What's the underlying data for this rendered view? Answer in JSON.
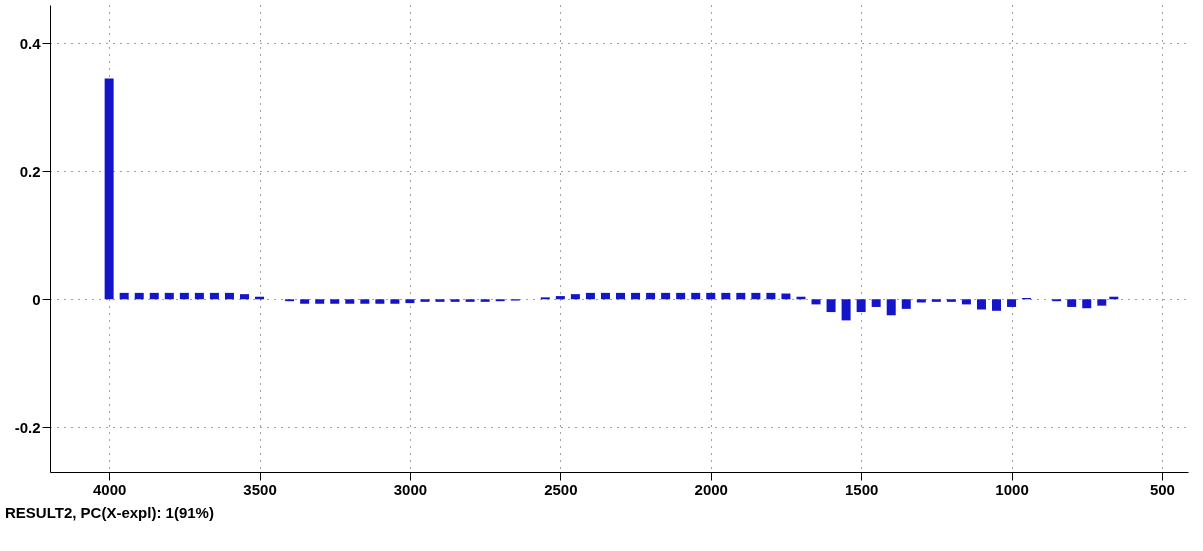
{
  "chart_data": {
    "type": "bar",
    "color": "#1414c8",
    "x": [
      4000,
      3950,
      3900,
      3850,
      3800,
      3750,
      3700,
      3650,
      3600,
      3550,
      3500,
      3450,
      3400,
      3350,
      3300,
      3250,
      3200,
      3150,
      3100,
      3050,
      3000,
      2950,
      2900,
      2850,
      2800,
      2750,
      2700,
      2650,
      2600,
      2550,
      2500,
      2450,
      2400,
      2350,
      2300,
      2250,
      2200,
      2150,
      2100,
      2050,
      2000,
      1950,
      1900,
      1850,
      1800,
      1750,
      1700,
      1650,
      1600,
      1550,
      1500,
      1450,
      1400,
      1350,
      1300,
      1250,
      1200,
      1150,
      1100,
      1050,
      1000,
      950,
      900,
      850,
      800,
      750,
      700,
      660
    ],
    "values": [
      0.345,
      0.01,
      0.01,
      0.01,
      0.01,
      0.01,
      0.01,
      0.01,
      0.01,
      0.008,
      0.004,
      0.0,
      -0.003,
      -0.007,
      -0.007,
      -0.007,
      -0.007,
      -0.007,
      -0.007,
      -0.007,
      -0.006,
      -0.004,
      -0.004,
      -0.004,
      -0.004,
      -0.004,
      -0.003,
      -0.002,
      0.0,
      0.003,
      0.005,
      0.008,
      0.01,
      0.01,
      0.01,
      0.01,
      0.01,
      0.01,
      0.01,
      0.01,
      0.01,
      0.01,
      0.01,
      0.01,
      0.01,
      0.009,
      0.004,
      -0.008,
      -0.02,
      -0.033,
      -0.02,
      -0.012,
      -0.025,
      -0.015,
      -0.005,
      -0.004,
      -0.004,
      -0.008,
      -0.016,
      -0.018,
      -0.012,
      0.002,
      0.0,
      -0.003,
      -0.012,
      -0.014,
      -0.01,
      0.004
    ],
    "xlim": [
      4180,
      430
    ],
    "ylim": [
      -0.27,
      0.46
    ],
    "xticks": [
      4000,
      3500,
      3000,
      2500,
      2000,
      1500,
      1000,
      500
    ],
    "yticks": [
      -0.2,
      0,
      0.2,
      0.4
    ],
    "grid": true,
    "annotations": [
      "RESULT2, PC(X-expl): 1(91%)"
    ]
  }
}
